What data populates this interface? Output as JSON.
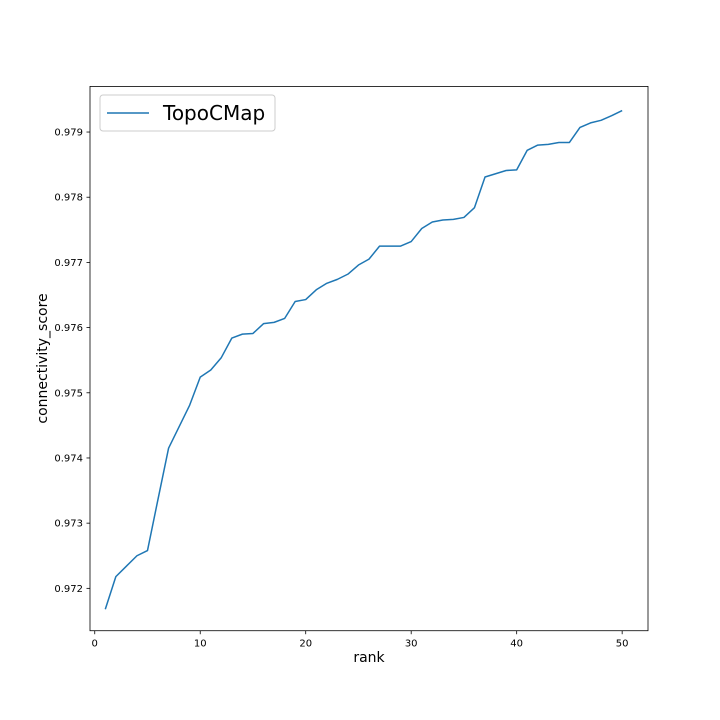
{
  "chart_data": {
    "type": "line",
    "title": "",
    "xlabel": "rank",
    "ylabel": "connectivity_score",
    "xlim": [
      -0.45,
      52.45
    ],
    "ylim": [
      0.97135,
      0.9797
    ],
    "x_ticks": [
      0,
      10,
      20,
      30,
      40,
      50
    ],
    "y_ticks": [
      0.972,
      0.973,
      0.974,
      0.975,
      0.976,
      0.977,
      0.978,
      0.979
    ],
    "x_tick_labels": [
      "0",
      "10",
      "20",
      "30",
      "40",
      "50"
    ],
    "y_tick_labels": [
      "0.972",
      "0.973",
      "0.974",
      "0.975",
      "0.976",
      "0.977",
      "0.978",
      "0.979"
    ],
    "grid": false,
    "legend_position": "upper-left",
    "series": [
      {
        "name": "TopoCMap",
        "color": "#1f77b4",
        "x": [
          1,
          2,
          3,
          4,
          5,
          6,
          7,
          8,
          9,
          10,
          11,
          12,
          13,
          14,
          15,
          16,
          17,
          18,
          19,
          20,
          21,
          22,
          23,
          24,
          25,
          26,
          27,
          28,
          29,
          30,
          31,
          32,
          33,
          34,
          35,
          36,
          37,
          38,
          39,
          40,
          41,
          42,
          43,
          44,
          45,
          46,
          47,
          48,
          49,
          50
        ],
        "y": [
          0.97168,
          0.97218,
          0.97234,
          0.9725,
          0.97258,
          0.97337,
          0.97415,
          0.97448,
          0.97481,
          0.97524,
          0.97535,
          0.97554,
          0.97584,
          0.9759,
          0.97591,
          0.97606,
          0.97608,
          0.97614,
          0.9764,
          0.97643,
          0.97658,
          0.97668,
          0.97674,
          0.97682,
          0.97696,
          0.97705,
          0.97725,
          0.97725,
          0.97725,
          0.97732,
          0.97752,
          0.97762,
          0.97765,
          0.97766,
          0.97769,
          0.97784,
          0.97831,
          0.97836,
          0.97841,
          0.97842,
          0.97872,
          0.9788,
          0.97881,
          0.97884,
          0.97884,
          0.97907,
          0.97914,
          0.97918,
          0.97925,
          0.97933
        ]
      }
    ]
  }
}
